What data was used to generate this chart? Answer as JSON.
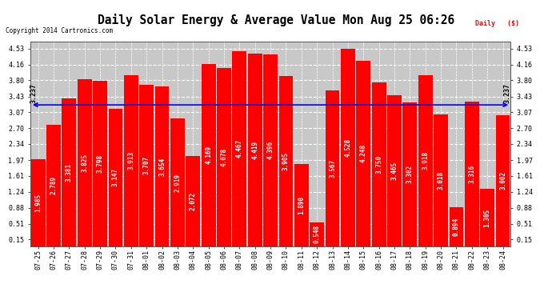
{
  "title": "Daily Solar Energy & Average Value Mon Aug 25 06:26",
  "copyright": "Copyright 2014 Cartronics.com",
  "average_value": 3.237,
  "bar_color": "#FF0000",
  "average_line_color": "#0000FF",
  "background_color": "#C8C8C8",
  "plot_bg_color": "#C8C8C8",
  "outer_bg_color": "#FFFFFF",
  "categories": [
    "07-25",
    "07-26",
    "07-27",
    "07-28",
    "07-29",
    "07-30",
    "07-31",
    "08-01",
    "08-02",
    "08-03",
    "08-04",
    "08-05",
    "08-06",
    "08-07",
    "08-08",
    "08-09",
    "08-10",
    "08-11",
    "08-12",
    "08-13",
    "08-14",
    "08-15",
    "08-16",
    "08-17",
    "08-18",
    "08-19",
    "08-20",
    "08-21",
    "08-22",
    "08-23",
    "08-24"
  ],
  "values": [
    1.985,
    2.789,
    3.381,
    3.825,
    3.798,
    3.147,
    3.913,
    3.707,
    3.654,
    2.919,
    2.072,
    4.169,
    4.078,
    4.467,
    4.419,
    4.396,
    3.905,
    1.89,
    0.548,
    3.567,
    4.528,
    4.248,
    3.75,
    3.465,
    3.302,
    3.918,
    3.018,
    0.894,
    3.316,
    1.305,
    3.002
  ],
  "yticks": [
    0.15,
    0.51,
    0.88,
    1.24,
    1.61,
    1.97,
    2.34,
    2.7,
    3.07,
    3.43,
    3.8,
    4.16,
    4.53
  ],
  "ymin": 0.0,
  "ymax": 4.68,
  "label_fontsize": 5.5,
  "tick_fontsize": 6.0,
  "title_fontsize": 10.5
}
